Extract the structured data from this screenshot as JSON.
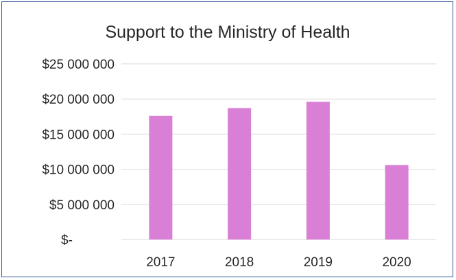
{
  "chart_data": {
    "type": "bar",
    "title": "Support to the Ministry of Health",
    "categories": [
      "2017",
      "2018",
      "2019",
      "2020"
    ],
    "values": [
      17600000,
      18700000,
      19600000,
      10600000
    ],
    "ylim": [
      0,
      25000000
    ],
    "y_ticks": [
      0,
      5000000,
      10000000,
      15000000,
      20000000,
      25000000
    ],
    "y_tick_labels": [
      "$-",
      "$5 000 000",
      "$10 000 000",
      "$15 000 000",
      "$20 000 000",
      "$25 000 000"
    ],
    "grid": true,
    "legend": "none",
    "bar_color": "#da7fd6",
    "grid_color": "#d9d9d9",
    "border_color": "#2f5597"
  }
}
